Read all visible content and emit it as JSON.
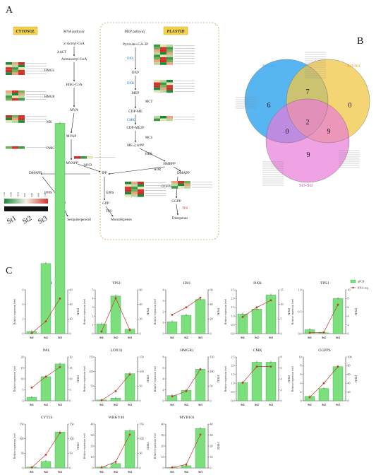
{
  "panels": {
    "a": "A",
    "b": "B",
    "c": "C"
  },
  "pathway": {
    "cytosol_label": "CYTOSOL",
    "plastid_label": "PLASTID",
    "mva_title": "MVA pathway",
    "mep_title": "MEP pathway",
    "metabolites": {
      "acetyl": "2-Acetyl-CoA",
      "acetoacetyl": "Acetoacetyl-CoA",
      "hmg": "HmG-CoA",
      "mva": "MVA",
      "mvap": "MVAP",
      "mvapp": "MVAPP",
      "dmapp_l": "DMAPP",
      "ipp": "IPP",
      "fpp": "FPP",
      "sesq": "Sesquiterpenoid",
      "gpp": "GPP",
      "mono": "Monoterpenes",
      "pyr": "Pyruvate+GA-3P",
      "dxp": "DXP",
      "mep": "MEP",
      "cdpme": "CDP-ME",
      "cdpme2p": "CDP-ME2P",
      "mecpp": "ME-2,4cPP",
      "hmbpp": "HMBPP",
      "dmapp_r": "DMAPP",
      "ggpp": "GGPP",
      "diterp": "Diterpenes"
    },
    "enzymes": {
      "aact": "AACT",
      "hmgs": "HMGS",
      "hmgr": "HMGR",
      "mk": "MK",
      "pmk": "PMK",
      "mvd": "MVD",
      "idi": "IDI",
      "fpps": "FPPS",
      "tps_l": "TPS",
      "gpps": "GPPS",
      "tps_m": "TPS",
      "dxs": "DXS",
      "dxr": "DXR",
      "mct": "MCT",
      "cmk": "CMK",
      "mcs": "MCS",
      "hds": "HDS",
      "hdr": "HDR",
      "ggpps": "GGPPS",
      "tps_r": "TPS"
    },
    "legend": {
      "scale": [
        "-1.20",
        "-0.80",
        "-0.40",
        "0.00",
        "0.40",
        "0.80",
        "1.20"
      ],
      "stages": [
        "St1",
        "St2",
        "St3"
      ]
    }
  },
  "venn": {
    "sets": [
      "St2-St1",
      "St3-St1",
      "St3-St2"
    ],
    "regions": {
      "a_only": "6",
      "b_only": "0",
      "c_only": "9",
      "ab": "7",
      "ac": "0",
      "bc": "9",
      "abc": "2"
    },
    "colors": {
      "a": "#3aa9f0",
      "b": "#f2c744",
      "c": "#e87bd9"
    }
  },
  "chart_data": {
    "type": "bar",
    "categories": [
      "St1",
      "St2",
      "St3"
    ],
    "legend": [
      "qPCR",
      "RNA-seq"
    ],
    "ylabel": "Relative expression level",
    "y2label": "FPKM",
    "charts": [
      {
        "title": "4CLL9",
        "yticks": [
          "0",
          "2",
          "4",
          "6"
        ],
        "y2ticks": [
          "0",
          "20",
          "40",
          "60"
        ],
        "qpcr": [
          0.05,
          1.6,
          4.8
        ],
        "rnaseq": [
          0.01,
          0.28,
          0.8
        ]
      },
      {
        "title": "TPS1",
        "yticks": [
          "0",
          "1",
          "2",
          "3",
          "4",
          "5"
        ],
        "y2ticks": [
          "0",
          "20",
          "40",
          "60"
        ],
        "qpcr": [
          0.22,
          0.86,
          0.1
        ],
        "rnaseq": [
          0.05,
          0.81,
          0.08
        ]
      },
      {
        "title": "IDI1",
        "yticks": [
          "0",
          "1",
          "2",
          "3",
          "4"
        ],
        "y2ticks": [
          "0",
          "20",
          "40",
          "60"
        ],
        "qpcr": [
          0.27,
          0.42,
          0.78
        ],
        "rnaseq": [
          0.43,
          0.6,
          0.82
        ]
      },
      {
        "title": "DXR",
        "yticks": [
          "0.0",
          "0.5",
          "1.0",
          "1.5",
          "2.0",
          "2.5"
        ],
        "y2ticks": [
          "0",
          "5",
          "10",
          "15"
        ],
        "qpcr": [
          0.45,
          0.56,
          0.88
        ],
        "rnaseq": [
          0.38,
          0.6,
          0.76
        ]
      },
      {
        "title": "TPS3",
        "yticks": [
          "0.0",
          "0.5",
          "1.0"
        ],
        "y2ticks": [
          "0",
          "2",
          "4",
          "6",
          "8",
          "10"
        ],
        "qpcr": [
          0.09,
          0.02,
          0.8
        ],
        "rnaseq": [
          0.02,
          0.03,
          0.66
        ]
      },
      {
        "title": "PAL",
        "yticks": [
          "0",
          "5",
          "10",
          "15",
          "20"
        ],
        "y2ticks": [
          "0",
          "5",
          "10",
          "15",
          "20"
        ],
        "qpcr": [
          0.08,
          0.55,
          0.84
        ],
        "rnaseq": [
          0.3,
          0.55,
          0.77
        ]
      },
      {
        "title": "LOX31",
        "yticks": [
          "0",
          "50",
          "100",
          "150"
        ],
        "y2ticks": [
          "0",
          "50",
          "100",
          "150"
        ],
        "qpcr": [
          0.02,
          0.06,
          0.62
        ],
        "rnaseq": [
          0.01,
          0.22,
          0.6
        ]
      },
      {
        "title": "HMGR1",
        "yticks": [
          "0",
          "2",
          "4",
          "6",
          "8"
        ],
        "y2ticks": [
          "0",
          "50",
          "100",
          "150"
        ],
        "qpcr": [
          0.12,
          0.24,
          0.72
        ],
        "rnaseq": [
          0.1,
          0.22,
          0.72
        ]
      },
      {
        "title": "CMK",
        "yticks": [
          "0.0",
          "0.5",
          "1.0",
          "1.5",
          "2.0",
          "2.5"
        ],
        "y2ticks": [
          "0",
          "2",
          "4",
          "6",
          "8"
        ],
        "qpcr": [
          0.42,
          0.88,
          0.88
        ],
        "rnaseq": [
          0.41,
          0.78,
          0.78
        ]
      },
      {
        "title": "GGPPS",
        "yticks": [
          "0",
          "2",
          "4",
          "6",
          "8",
          "10"
        ],
        "y2ticks": [
          "0",
          "20",
          "40",
          "60",
          "80",
          "100"
        ],
        "qpcr": [
          0.1,
          0.28,
          0.78
        ],
        "rnaseq": [
          0.08,
          0.4,
          0.78
        ]
      },
      {
        "title": "CYT24",
        "yticks": [
          "0",
          "50",
          "100",
          "150"
        ],
        "y2ticks": [
          "0",
          "50",
          "100",
          "150"
        ],
        "qpcr": [
          0.02,
          0.15,
          0.82
        ],
        "rnaseq": [
          0.01,
          0.3,
          0.8
        ]
      },
      {
        "title": "WRKY40",
        "yticks": [
          "0",
          "10",
          "20",
          "30",
          "40"
        ],
        "y2ticks": [
          "0",
          "50",
          "100",
          "150"
        ],
        "qpcr": [
          0.02,
          0.1,
          0.85
        ],
        "rnaseq": [
          0.01,
          0.14,
          0.76
        ]
      },
      {
        "title": "MYB101",
        "yticks": [
          "0",
          "10",
          "20",
          "30",
          "40"
        ],
        "y2ticks": [
          "0",
          "10",
          "20",
          "30",
          "40"
        ],
        "qpcr": [
          0.01,
          0.05,
          0.9
        ],
        "rnaseq": [
          0.01,
          0.08,
          0.76
        ]
      }
    ]
  }
}
